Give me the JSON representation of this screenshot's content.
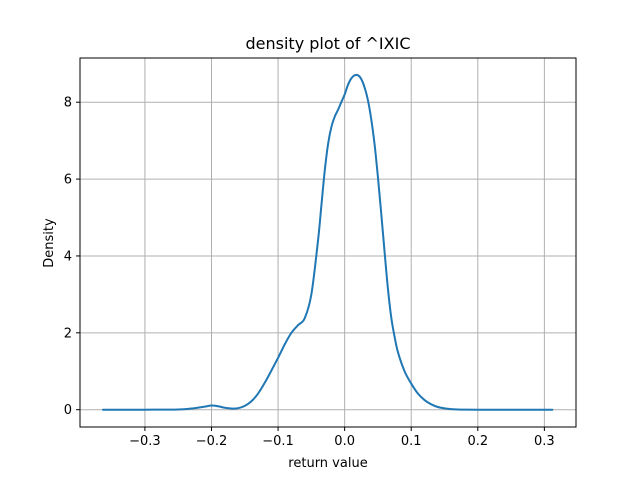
{
  "chart_data": {
    "type": "line",
    "title": "density plot of ^IXIC",
    "xlabel": "return value",
    "ylabel": "Density",
    "xlim": [
      -0.3975,
      0.3475
    ],
    "ylim": [
      -0.45,
      9.15
    ],
    "x_ticks": [
      -0.3,
      -0.2,
      -0.1,
      0.0,
      0.1,
      0.2,
      0.3
    ],
    "x_tick_labels": [
      "−0.3",
      "−0.2",
      "−0.1",
      "0.0",
      "0.1",
      "0.2",
      "0.3"
    ],
    "y_ticks": [
      0,
      2,
      4,
      6,
      8
    ],
    "y_tick_labels": [
      "0",
      "2",
      "4",
      "6",
      "8"
    ],
    "grid": true,
    "color": "#1f77b4",
    "series": [
      {
        "x": [
          -0.363,
          -0.3,
          -0.25,
          -0.23,
          -0.21,
          -0.2,
          -0.19,
          -0.18,
          -0.17,
          -0.16,
          -0.15,
          -0.14,
          -0.13,
          -0.12,
          -0.11,
          -0.1,
          -0.09,
          -0.08,
          -0.07,
          -0.06,
          -0.05,
          -0.04,
          -0.035,
          -0.03,
          -0.025,
          -0.02,
          -0.015,
          -0.01,
          -0.005,
          0.0,
          0.005,
          0.01,
          0.015,
          0.02,
          0.025,
          0.03,
          0.035,
          0.04,
          0.045,
          0.05,
          0.055,
          0.06,
          0.065,
          0.07,
          0.075,
          0.08,
          0.09,
          0.1,
          0.11,
          0.12,
          0.13,
          0.14,
          0.15,
          0.16,
          0.17,
          0.18,
          0.2,
          0.25,
          0.312
        ],
        "y": [
          0.0,
          0.0,
          0.005,
          0.03,
          0.08,
          0.11,
          0.09,
          0.05,
          0.03,
          0.04,
          0.1,
          0.22,
          0.42,
          0.7,
          1.02,
          1.35,
          1.7,
          2.0,
          2.2,
          2.38,
          3.0,
          4.4,
          5.3,
          6.2,
          6.9,
          7.35,
          7.62,
          7.8,
          8.0,
          8.2,
          8.45,
          8.62,
          8.7,
          8.7,
          8.6,
          8.38,
          8.05,
          7.55,
          6.9,
          6.05,
          5.1,
          4.1,
          3.15,
          2.4,
          1.9,
          1.5,
          1.0,
          0.68,
          0.42,
          0.25,
          0.14,
          0.07,
          0.035,
          0.015,
          0.006,
          0.002,
          0.0,
          0.0,
          0.0
        ]
      }
    ]
  }
}
